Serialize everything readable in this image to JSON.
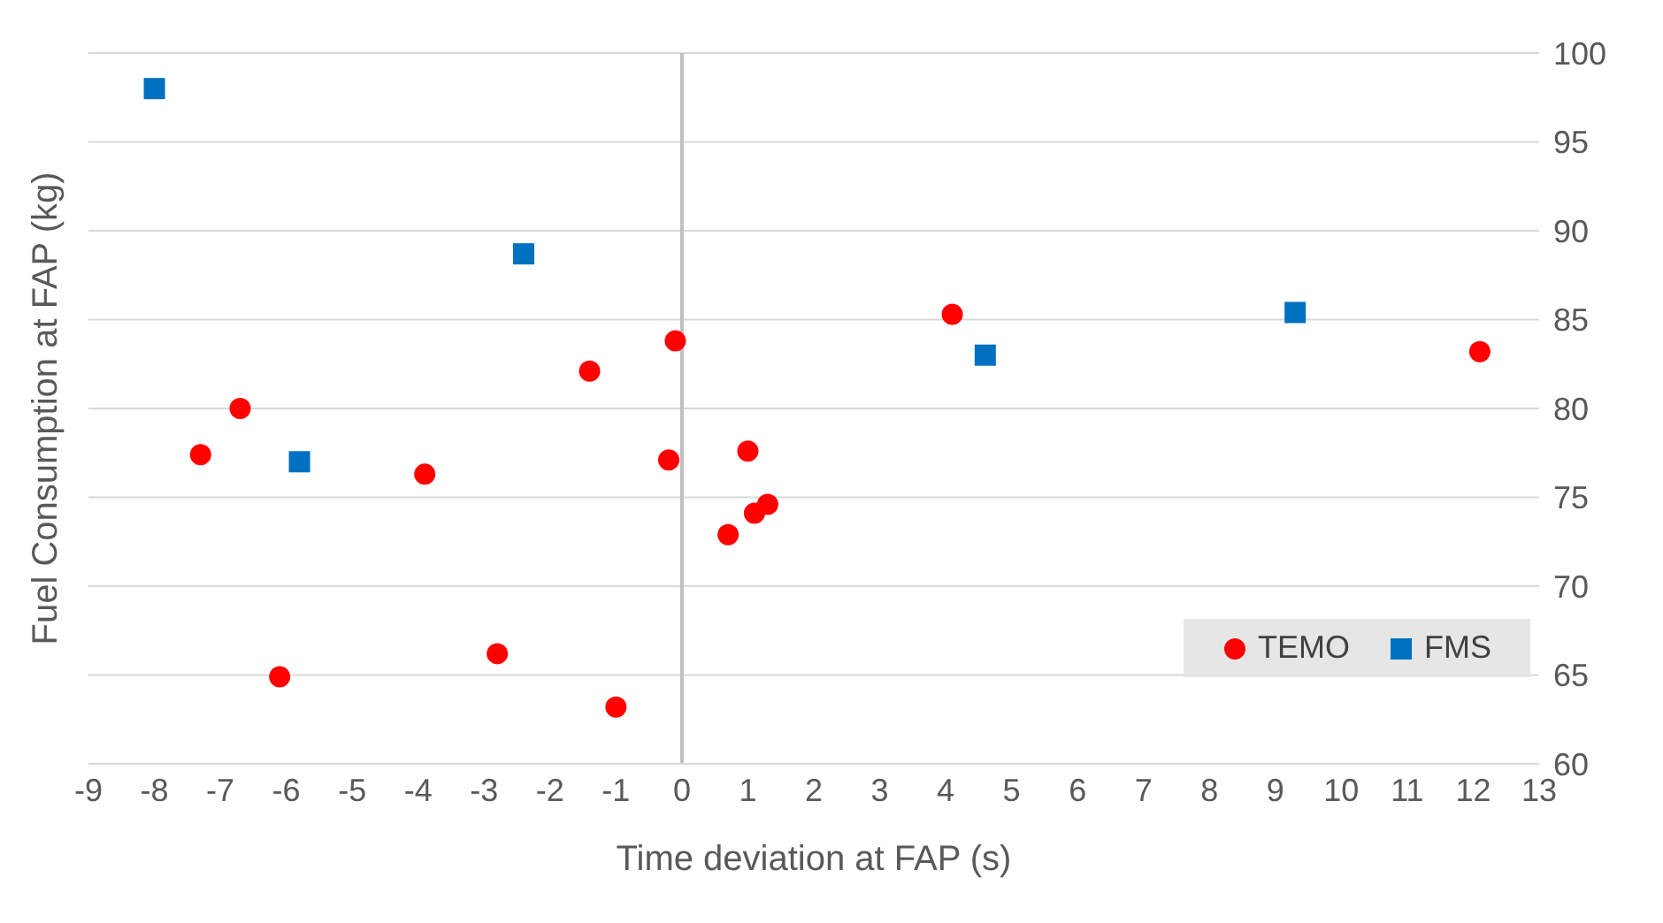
{
  "chart_data": {
    "type": "scatter",
    "xlabel": "Time deviation at FAP (s)",
    "ylabel": "Fuel Consumption at FAP (kg)",
    "xlim": [
      -9,
      13
    ],
    "xticks": [
      -9,
      -8,
      -7,
      -6,
      -5,
      -4,
      -3,
      -2,
      -1,
      0,
      1,
      2,
      3,
      4,
      5,
      6,
      7,
      8,
      9,
      10,
      11,
      12,
      13
    ],
    "ylim": [
      60,
      100
    ],
    "yticks": [
      60,
      65,
      70,
      75,
      80,
      85,
      90,
      95,
      100
    ],
    "grid": "y",
    "legend": "bottom right",
    "ref_lines": [
      {
        "axis": "x",
        "value": 0,
        "color": "#bfbfbf"
      }
    ],
    "series": [
      {
        "name": "TEMO",
        "color": "#ff0000",
        "marker": "circle",
        "x": [
          -7.3,
          -6.7,
          -6.1,
          -3.9,
          -2.8,
          -1.4,
          -1.0,
          -0.2,
          -0.1,
          0.7,
          1.0,
          1.1,
          1.3,
          4.1,
          12.1
        ],
        "values": [
          77.4,
          80.0,
          64.9,
          76.3,
          66.2,
          82.1,
          63.2,
          77.1,
          83.8,
          72.9,
          77.6,
          74.1,
          74.6,
          85.3,
          83.2
        ]
      },
      {
        "name": "FMS",
        "color": "#0070c0",
        "marker": "square",
        "x": [
          -8.0,
          -5.8,
          -2.4,
          4.6,
          9.3
        ],
        "values": [
          98.0,
          77.0,
          88.7,
          83.0,
          85.4
        ]
      }
    ]
  }
}
